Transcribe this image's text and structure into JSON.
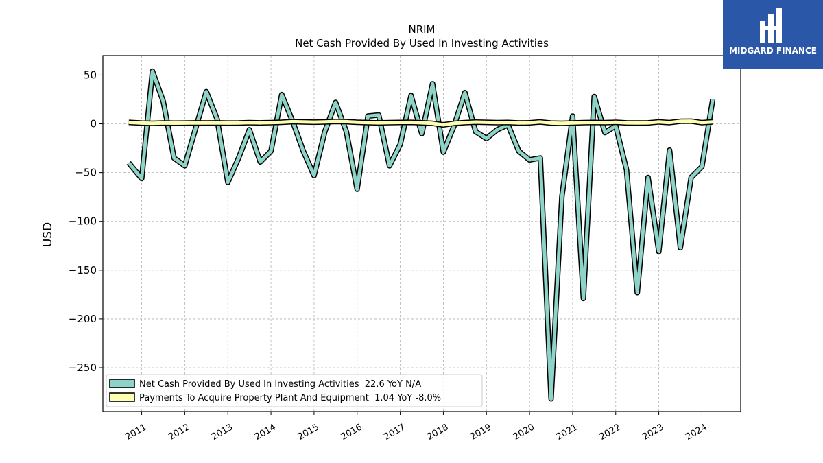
{
  "brand": {
    "name": "MIDGARD FINANCE",
    "bg_color": "#2b57a8"
  },
  "chart_data": {
    "type": "line",
    "title": "NRIM",
    "subtitle": "Net Cash Provided By Used In Investing Activities",
    "ylabel": "USD",
    "xlabel": "",
    "ylim": [
      -295,
      70
    ],
    "xlim": [
      2010.1,
      2024.9
    ],
    "yticks": [
      50,
      0,
      -50,
      -100,
      -150,
      -200,
      -250
    ],
    "ytick_labels": [
      "50",
      "0",
      "−50",
      "−100",
      "−150",
      "−200",
      "−250"
    ],
    "xticks": [
      2011,
      2012,
      2013,
      2014,
      2015,
      2016,
      2017,
      2018,
      2019,
      2020,
      2021,
      2022,
      2023,
      2024
    ],
    "xtick_labels": [
      "2011",
      "2012",
      "2013",
      "2014",
      "2015",
      "2016",
      "2017",
      "2018",
      "2019",
      "2020",
      "2021",
      "2022",
      "2023",
      "2024"
    ],
    "grid": true,
    "legend_position": "bottom-left",
    "series": [
      {
        "name": "Net Cash Provided By Used In Investing Activities  22.6 YoY N/A",
        "color": "#8dd3c7",
        "x": [
          2010.7,
          2011.0,
          2011.25,
          2011.5,
          2011.75,
          2012.0,
          2012.25,
          2012.5,
          2012.75,
          2013.0,
          2013.25,
          2013.5,
          2013.75,
          2014.0,
          2014.25,
          2014.5,
          2014.75,
          2015.0,
          2015.25,
          2015.5,
          2015.75,
          2016.0,
          2016.25,
          2016.5,
          2016.75,
          2017.0,
          2017.25,
          2017.5,
          2017.75,
          2018.0,
          2018.25,
          2018.5,
          2018.75,
          2019.0,
          2019.25,
          2019.5,
          2019.75,
          2020.0,
          2020.25,
          2020.5,
          2020.75,
          2021.0,
          2021.25,
          2021.5,
          2021.75,
          2022.0,
          2022.25,
          2022.5,
          2022.75,
          2023.0,
          2023.25,
          2023.5,
          2023.75,
          2024.0,
          2024.25
        ],
        "values": [
          -40,
          -56,
          54,
          23,
          -35,
          -43,
          -5,
          33,
          5,
          -60,
          -35,
          -6,
          -39,
          -28,
          30,
          3,
          -28,
          -53,
          -8,
          22,
          -8,
          -67,
          8,
          9,
          -43,
          -21,
          29,
          -10,
          41,
          -29,
          -2,
          32,
          -8,
          -15,
          -6,
          -1,
          -28,
          -37,
          -35,
          -282,
          -75,
          8,
          -179,
          28,
          -9,
          -2,
          -47,
          -173,
          -55,
          -131,
          -27,
          -127,
          -55,
          -44,
          25
        ]
      },
      {
        "name": "Payments To Acquire Property Plant And Equipment  1.04 YoY -8.0%",
        "color": "#ffffb3",
        "x": [
          2010.7,
          2011.0,
          2011.25,
          2011.5,
          2011.75,
          2012.0,
          2012.25,
          2012.5,
          2012.75,
          2013.0,
          2013.25,
          2013.5,
          2013.75,
          2014.0,
          2014.25,
          2014.5,
          2014.75,
          2015.0,
          2015.25,
          2015.5,
          2015.75,
          2016.0,
          2016.25,
          2016.5,
          2016.75,
          2017.0,
          2017.25,
          2017.5,
          2017.75,
          2018.0,
          2018.25,
          2018.5,
          2018.75,
          2019.0,
          2019.25,
          2019.5,
          2019.75,
          2020.0,
          2020.25,
          2020.5,
          2020.75,
          2021.0,
          2021.25,
          2021.5,
          2021.75,
          2022.0,
          2022.25,
          2022.5,
          2022.75,
          2023.0,
          2023.25,
          2023.5,
          2023.75,
          2024.0,
          2024.25
        ],
        "values": [
          1.5,
          0.8,
          0.6,
          0.9,
          0.7,
          0.8,
          1.0,
          0.9,
          1.0,
          0.8,
          0.9,
          1.2,
          1.0,
          1.3,
          1.6,
          2.2,
          2.0,
          1.7,
          2.0,
          2.4,
          2.2,
          1.6,
          1.2,
          1.0,
          1.3,
          1.4,
          1.5,
          1.1,
          0.5,
          -1.0,
          0.5,
          1.2,
          1.8,
          1.5,
          1.2,
          1.4,
          0.9,
          1.1,
          1.9,
          0.8,
          0.6,
          0.9,
          1.3,
          1.4,
          1.2,
          1.6,
          1.0,
          0.9,
          1.0,
          2.0,
          1.3,
          2.6,
          2.8,
          1.2,
          1.9
        ]
      }
    ]
  }
}
